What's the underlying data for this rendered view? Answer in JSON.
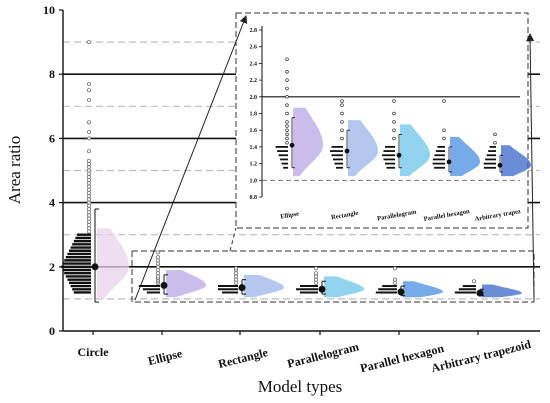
{
  "chart_data": [
    {
      "type": "violin-raincloud",
      "ylabel": "Area ratio",
      "xlabel": "Model types",
      "ylim": [
        0,
        10
      ],
      "yticks": [
        0,
        2,
        4,
        6,
        8,
        10
      ],
      "solid_lines": [
        2,
        4,
        6,
        8
      ],
      "dashed_lines": [
        1,
        3,
        5,
        7,
        9
      ],
      "categories": [
        "Circle",
        "Ellipse",
        "Rectangle",
        "Parallelogram",
        "Parallel hexagon",
        "Arbitrary trapezoid"
      ],
      "colors": [
        "#e9d3ea",
        "#b8a7e6",
        "#9bb6ea",
        "#6ec6ea",
        "#4a8ee0",
        "#3a66c8"
      ],
      "series": [
        {
          "name": "Circle",
          "mean": 2.0,
          "lower": 0.9,
          "upper": 3.8,
          "points": [
            1.1,
            1.2,
            1.3,
            1.4,
            1.5,
            1.6,
            1.7,
            1.8,
            1.9,
            2.0,
            2.1,
            2.2,
            2.3,
            2.4,
            2.5,
            2.6,
            2.7,
            2.8,
            2.9,
            3.0,
            3.1,
            3.2,
            3.3,
            3.4,
            3.5,
            3.6,
            3.7,
            3.8,
            3.9,
            4.0,
            4.1,
            4.2,
            4.3,
            4.4,
            4.5,
            4.6,
            4.7,
            4.8,
            4.9,
            5.0,
            5.1,
            5.2,
            5.3,
            5.6,
            6.0,
            6.2,
            6.5,
            7.2,
            7.5,
            7.7,
            9.0
          ]
        },
        {
          "name": "Ellipse",
          "mean": 1.42,
          "lower": 1.15,
          "upper": 1.75,
          "points": [
            1.1,
            1.15,
            1.2,
            1.25,
            1.3,
            1.35,
            1.4,
            1.45,
            1.5,
            1.55,
            1.6,
            1.65,
            1.7,
            1.8,
            1.9,
            2.0,
            2.1,
            2.2,
            2.3,
            2.45
          ]
        },
        {
          "name": "Rectangle",
          "mean": 1.35,
          "lower": 1.15,
          "upper": 1.6,
          "points": [
            1.15,
            1.2,
            1.25,
            1.3,
            1.35,
            1.4,
            1.5,
            1.6,
            1.7,
            1.8,
            1.9,
            1.95
          ]
        },
        {
          "name": "Parallelogram",
          "mean": 1.3,
          "lower": 1.15,
          "upper": 1.55,
          "points": [
            1.15,
            1.2,
            1.25,
            1.3,
            1.35,
            1.4,
            1.5,
            1.6,
            1.7,
            1.8,
            1.95
          ]
        },
        {
          "name": "Parallel hexagon",
          "mean": 1.22,
          "lower": 1.1,
          "upper": 1.4,
          "points": [
            1.1,
            1.15,
            1.2,
            1.25,
            1.3,
            1.4,
            1.5,
            1.6,
            1.95
          ]
        },
        {
          "name": "Arbitrary trapezoid",
          "mean": 1.18,
          "lower": 1.1,
          "upper": 1.3,
          "points": [
            1.1,
            1.15,
            1.2,
            1.25,
            1.3,
            1.35,
            1.45,
            1.55
          ]
        }
      ]
    },
    {
      "type": "violin-raincloud",
      "role": "inset-zoom",
      "ylim": [
        0.8,
        2.8
      ],
      "yticks": [
        0.8,
        1.0,
        1.2,
        1.4,
        1.6,
        1.8,
        2.0,
        2.2,
        2.4,
        2.6,
        2.8
      ],
      "solid_lines": [
        2.0
      ],
      "dashed_lines": [
        1.0
      ],
      "categories": [
        "Ellipse",
        "Rectangle",
        "Parallelogram",
        "Parallel hexagon",
        "Arbitrary trapez"
      ]
    }
  ]
}
